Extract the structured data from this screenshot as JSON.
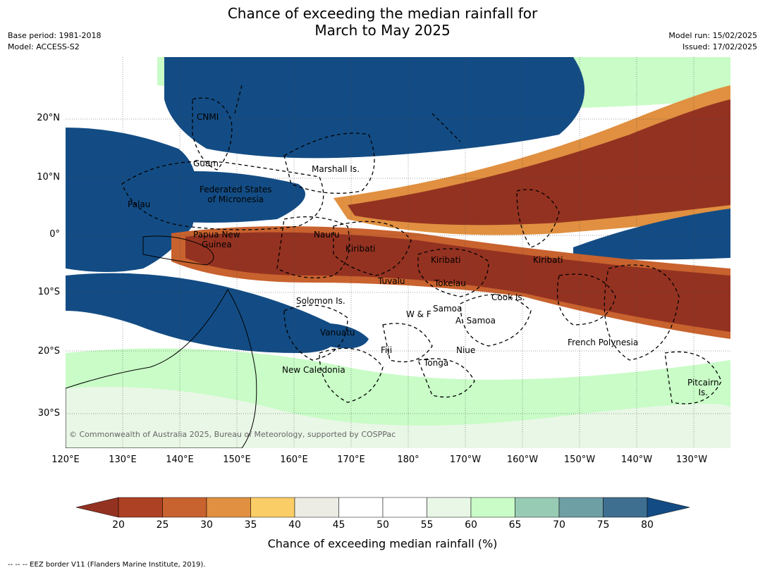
{
  "title_line1": "Chance of exceeding the median rainfall for",
  "title_line2": "March to May 2025",
  "meta_left": [
    "Base period: 1981-2018",
    "Model: ACCESS-S2"
  ],
  "meta_right": [
    "Model run: 15/02/2025",
    "Issued: 17/02/2025"
  ],
  "lat_labels": [
    "20°N",
    "10°N",
    "0°",
    "10°S",
    "20°S",
    "30°S"
  ],
  "lon_labels": [
    "120°E",
    "130°E",
    "140°E",
    "150°E",
    "160°E",
    "170°E",
    "180°",
    "170°W",
    "160°W",
    "150°W",
    "140°W",
    "130°W"
  ],
  "places": [
    {
      "name": "CNMI"
    },
    {
      "name": "Guam"
    },
    {
      "name": "Marshall Is."
    },
    {
      "name": "Federated States\nof Micronesia"
    },
    {
      "name": "Palau"
    },
    {
      "name": "Nauru"
    },
    {
      "name": "Papua New\nGuinea"
    },
    {
      "name": "Kiribati"
    },
    {
      "name": "Kiribati"
    },
    {
      "name": "Kiribati"
    },
    {
      "name": "Tuvalu"
    },
    {
      "name": "Tokelau"
    },
    {
      "name": "Cook Is."
    },
    {
      "name": "Solomon Is."
    },
    {
      "name": "Samoa"
    },
    {
      "name": "W & F"
    },
    {
      "name": "A. Samoa"
    },
    {
      "name": "Vanuatu"
    },
    {
      "name": "Fiji"
    },
    {
      "name": "Niue"
    },
    {
      "name": "French Polynesia"
    },
    {
      "name": "Tonga"
    },
    {
      "name": "New Caledonia"
    },
    {
      "name": "Pitcairn\nIs."
    }
  ],
  "copyright": "© Commonwealth of Australia 2025, Bureau of Meteorology, supported by COSPPac",
  "colorbar": {
    "ticks": [
      "20",
      "25",
      "30",
      "35",
      "40",
      "45",
      "50",
      "55",
      "60",
      "65",
      "70",
      "75",
      "80"
    ],
    "colors": [
      "#ad4124",
      "#c8622e",
      "#e09040",
      "#fbcd66",
      "#ecebe4",
      "#ffffff",
      "#ffffff",
      "#e9f7e6",
      "#c9fcc7",
      "#98cbb4",
      "#6e9fa5",
      "#3f6f90"
    ],
    "under_color": "#943221",
    "over_color": "#134c84",
    "label": "Chance of exceeding median rainfall (%)"
  },
  "eez_note": "-- -- -- EEZ border V11 (Flanders Marine Institute, 2019).",
  "map_colors": {
    "dry": "#943221",
    "wet": "#134c84"
  }
}
